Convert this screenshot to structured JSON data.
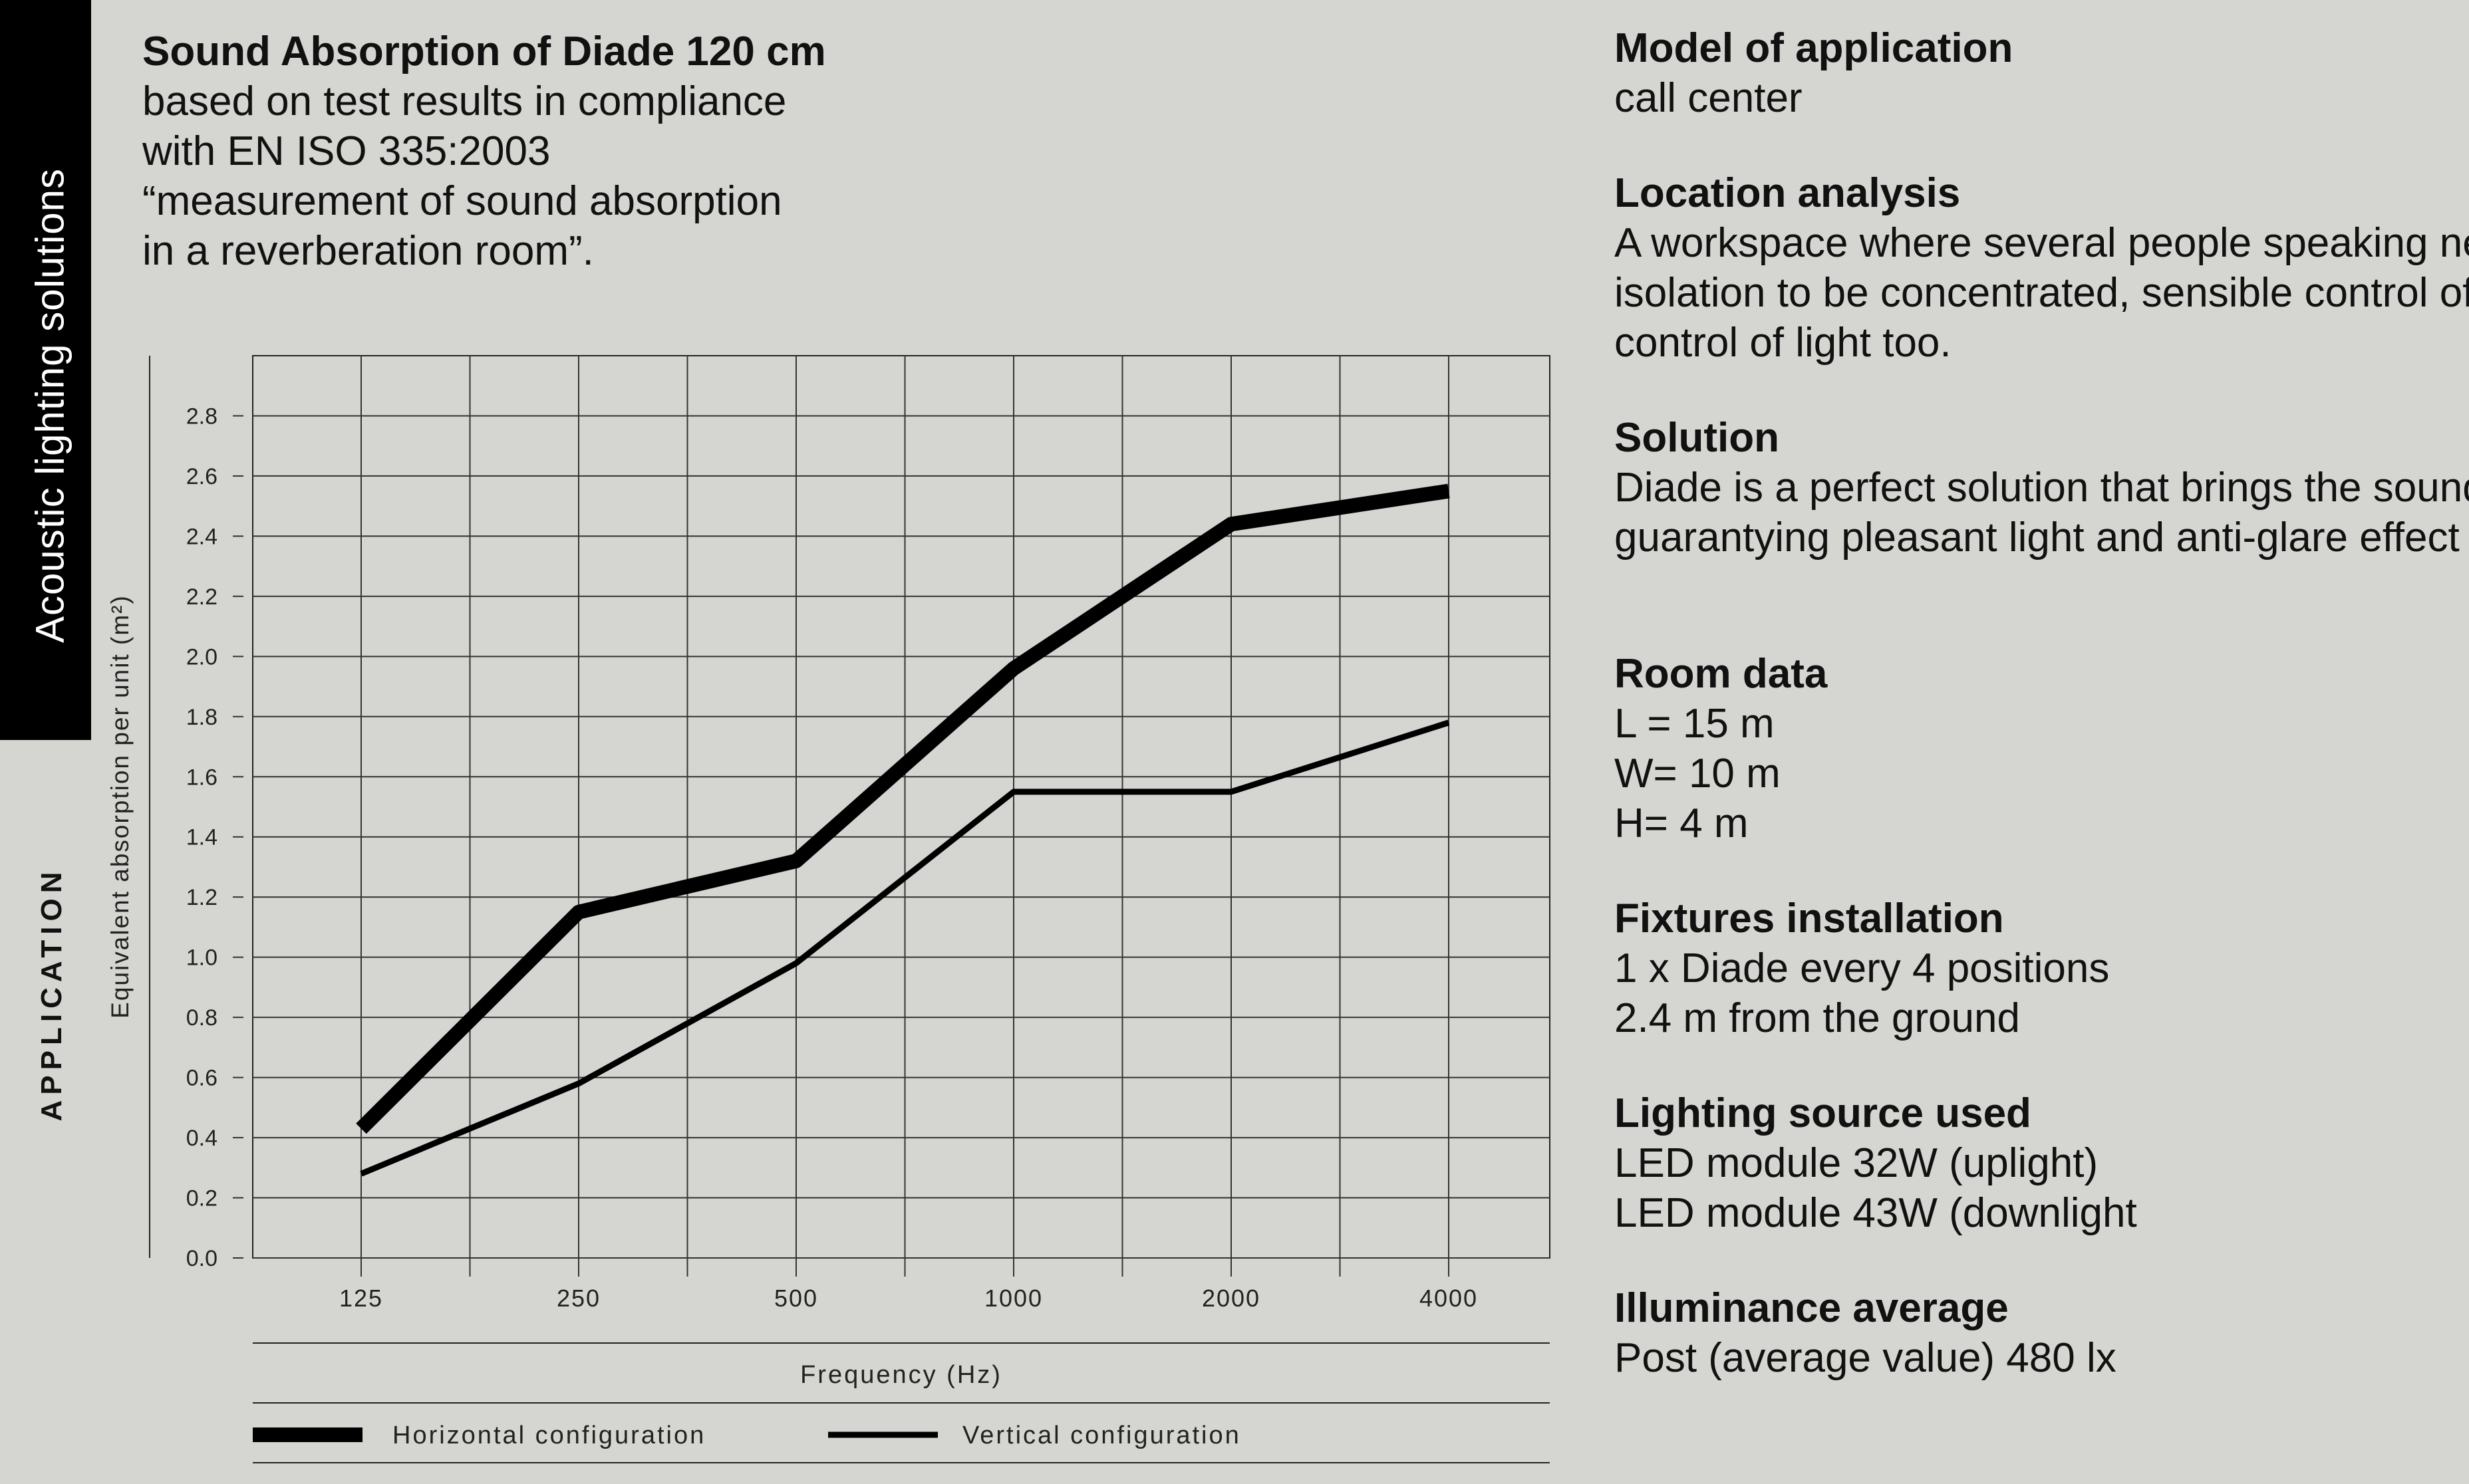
{
  "sidebar": {
    "tab_label": "Acoustic lighting solutions",
    "section_label": "APPLICATION"
  },
  "intro": {
    "title": "Sound Absorption of Diade 120 cm",
    "description": "based on test results in compliance\nwith EN ISO 335:2003\n“measurement of sound absorption\nin a reverberation room”."
  },
  "chart_data": {
    "type": "line",
    "xlabel": "Frequency (Hz)",
    "ylabel": "Equivalent absorption per unit (m²)",
    "categories": [
      "125",
      "250",
      "500",
      "1000",
      "2000",
      "4000"
    ],
    "yticks": [
      "0.0",
      "0.2",
      "0.4",
      "0.6",
      "0.8",
      "1.0",
      "1.2",
      "1.4",
      "1.6",
      "1.8",
      "2.0",
      "2.2",
      "2.4",
      "2.6",
      "2.8"
    ],
    "ylim": [
      0,
      3.0
    ],
    "grid": true,
    "legend_position": "bottom",
    "series": [
      {
        "name": "Horizontal configuration",
        "values": [
          0.43,
          1.15,
          1.32,
          1.96,
          2.44,
          2.55
        ],
        "weight": "thick",
        "color": "#000000"
      },
      {
        "name": "Vertical configuration",
        "values": [
          0.28,
          0.58,
          0.98,
          1.55,
          1.55,
          1.78
        ],
        "weight": "thin",
        "color": "#000000"
      }
    ]
  },
  "info": [
    {
      "title": "Model of application",
      "lines": [
        "call center"
      ]
    },
    {
      "title": "Location analysis",
      "lines": [
        "A workspace where several people speaking nee",
        "isolation to be concentrated, sensible control of s",
        "control of light too."
      ]
    },
    {
      "title": "Solution",
      "lines": [
        "Diade is a perfect solution that brings the sound c",
        "guarantying pleasant light and anti-glare effect o"
      ]
    },
    {
      "title": "Room data",
      "lines": [
        "L = 15 m",
        "W= 10 m",
        "H= 4 m"
      ]
    },
    {
      "title": "Fixtures installation",
      "lines": [
        "1 x Diade every 4 positions",
        "2.4 m from the ground"
      ]
    },
    {
      "title": "Lighting source used",
      "lines": [
        "LED module 32W (uplight)",
        "LED module 43W (downlight"
      ]
    },
    {
      "title": "Illuminance average",
      "lines": [
        "Post (average value) 480 lx"
      ]
    }
  ]
}
